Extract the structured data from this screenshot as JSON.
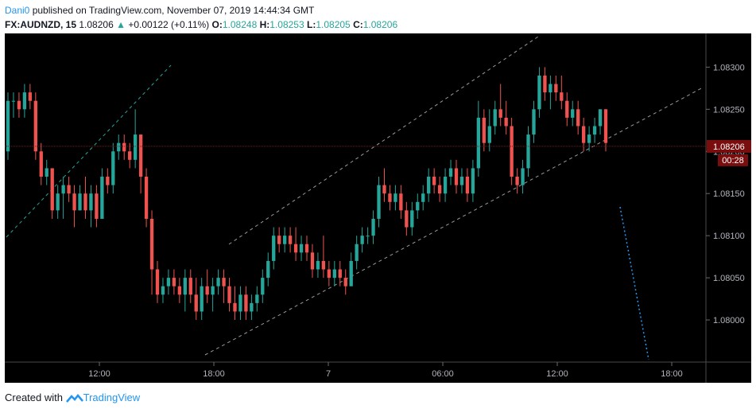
{
  "header": {
    "author": "Dani0",
    "published_text": " published on TradingView.com, November 07, 2019 14:44:34 GMT",
    "symbol": "FX:AUDNZD, 15",
    "last": "1.08206",
    "change": "+0.00122 (+0.11%)",
    "open_label": "O:",
    "open": "1.08248",
    "high_label": "H:",
    "high": "1.08253",
    "low_label": "L:",
    "low": "1.08205",
    "close_label": "C:",
    "close": "1.08206"
  },
  "footer": {
    "created_with": "Created with",
    "brand": "TradingView"
  },
  "colors": {
    "up": "#26a69a",
    "down": "#ef5350",
    "bg": "#000000",
    "axis_text": "#b2b5be",
    "price_tag": "#7a0e0e"
  },
  "chart_data": {
    "type": "candlestick",
    "timeframe": "15",
    "y_ticks": [
      "1.08300",
      "1.08250",
      "1.08200",
      "1.08150",
      "1.08100",
      "1.08050",
      "1.08000"
    ],
    "x_ticks": [
      "12:00",
      "18:00",
      "7",
      "06:00",
      "12:00",
      "18:00"
    ],
    "last_price_label": "1.08206",
    "countdown_label": "00:28",
    "ylim": [
      1.0795,
      1.0834
    ],
    "candles": [
      [
        1.082,
        1.0827,
        1.0819,
        1.0826
      ],
      [
        1.0826,
        1.0827,
        1.0824,
        1.0826
      ],
      [
        1.0826,
        1.0827,
        1.0824,
        1.0825
      ],
      [
        1.0825,
        1.0828,
        1.0824,
        1.0827
      ],
      [
        1.0827,
        1.0828,
        1.0825,
        1.0826
      ],
      [
        1.0826,
        1.0827,
        1.0819,
        1.082
      ],
      [
        1.082,
        1.0821,
        1.0816,
        1.0817
      ],
      [
        1.0817,
        1.0819,
        1.0816,
        1.0818
      ],
      [
        1.0818,
        1.0818,
        1.0812,
        1.0813
      ],
      [
        1.0813,
        1.0816,
        1.0812,
        1.0815
      ],
      [
        1.0815,
        1.0817,
        1.0812,
        1.0816
      ],
      [
        1.0816,
        1.0817,
        1.0814,
        1.0815
      ],
      [
        1.0815,
        1.0816,
        1.0811,
        1.0813
      ],
      [
        1.0813,
        1.0816,
        1.0813,
        1.0815
      ],
      [
        1.0815,
        1.0817,
        1.0812,
        1.0813
      ],
      [
        1.0813,
        1.0816,
        1.0811,
        1.0815
      ],
      [
        1.0815,
        1.0816,
        1.0811,
        1.0812
      ],
      [
        1.0812,
        1.0818,
        1.0812,
        1.0817
      ],
      [
        1.0817,
        1.0818,
        1.0815,
        1.0816
      ],
      [
        1.0816,
        1.0821,
        1.0815,
        1.082
      ],
      [
        1.082,
        1.0822,
        1.0819,
        1.0821
      ],
      [
        1.0821,
        1.0822,
        1.0819,
        1.082
      ],
      [
        1.082,
        1.0821,
        1.0818,
        1.0819
      ],
      [
        1.0819,
        1.0825,
        1.0818,
        1.0822
      ],
      [
        1.0822,
        1.0822,
        1.0815,
        1.0817
      ],
      [
        1.0817,
        1.0818,
        1.0811,
        1.0812
      ],
      [
        1.0812,
        1.0813,
        1.0803,
        1.0806
      ],
      [
        1.0806,
        1.0807,
        1.0802,
        1.0803
      ],
      [
        1.0803,
        1.0805,
        1.0802,
        1.0804
      ],
      [
        1.0804,
        1.0806,
        1.0803,
        1.0805
      ],
      [
        1.0805,
        1.0806,
        1.0803,
        1.0804
      ],
      [
        1.0804,
        1.0805,
        1.0802,
        1.0803
      ],
      [
        1.0803,
        1.0806,
        1.0801,
        1.0805
      ],
      [
        1.0805,
        1.0806,
        1.0802,
        1.0803
      ],
      [
        1.0803,
        1.0805,
        1.08,
        1.0801
      ],
      [
        1.0801,
        1.0805,
        1.08,
        1.0804
      ],
      [
        1.0804,
        1.0806,
        1.0802,
        1.0803
      ],
      [
        1.0803,
        1.0805,
        1.0801,
        1.0804
      ],
      [
        1.0804,
        1.0806,
        1.0803,
        1.0805
      ],
      [
        1.0805,
        1.0806,
        1.0802,
        1.0804
      ],
      [
        1.0804,
        1.0805,
        1.0801,
        1.0802
      ],
      [
        1.0802,
        1.0804,
        1.08,
        1.0801
      ],
      [
        1.0801,
        1.0804,
        1.08,
        1.0803
      ],
      [
        1.0803,
        1.0804,
        1.08,
        1.0801
      ],
      [
        1.0801,
        1.0803,
        1.08,
        1.0802
      ],
      [
        1.0802,
        1.0804,
        1.0801,
        1.0803
      ],
      [
        1.0803,
        1.0806,
        1.0802,
        1.0805
      ],
      [
        1.0805,
        1.0808,
        1.0804,
        1.0807
      ],
      [
        1.0807,
        1.0811,
        1.0806,
        1.081
      ],
      [
        1.081,
        1.0811,
        1.0808,
        1.0809
      ],
      [
        1.0809,
        1.0811,
        1.0808,
        1.081
      ],
      [
        1.081,
        1.0811,
        1.0808,
        1.0809
      ],
      [
        1.0809,
        1.0811,
        1.0807,
        1.0808
      ],
      [
        1.0808,
        1.081,
        1.0807,
        1.0809
      ],
      [
        1.0809,
        1.081,
        1.0807,
        1.0808
      ],
      [
        1.0808,
        1.0809,
        1.0805,
        1.0806
      ],
      [
        1.0806,
        1.0808,
        1.0805,
        1.0807
      ],
      [
        1.0807,
        1.081,
        1.0805,
        1.0806
      ],
      [
        1.0806,
        1.0807,
        1.0804,
        1.0805
      ],
      [
        1.0805,
        1.0807,
        1.0804,
        1.0806
      ],
      [
        1.0806,
        1.0807,
        1.0804,
        1.0805
      ],
      [
        1.0805,
        1.0806,
        1.0803,
        1.0804
      ],
      [
        1.0804,
        1.0808,
        1.0804,
        1.0807
      ],
      [
        1.0807,
        1.081,
        1.0806,
        1.0809
      ],
      [
        1.0809,
        1.0811,
        1.0808,
        1.081
      ],
      [
        1.081,
        1.0811,
        1.0809,
        1.081
      ],
      [
        1.081,
        1.0813,
        1.0809,
        1.0812
      ],
      [
        1.0812,
        1.0817,
        1.0811,
        1.0816
      ],
      [
        1.0816,
        1.0818,
        1.0814,
        1.0815
      ],
      [
        1.0815,
        1.0816,
        1.0813,
        1.0814
      ],
      [
        1.0814,
        1.0816,
        1.0813,
        1.0815
      ],
      [
        1.0815,
        1.0816,
        1.0812,
        1.0813
      ],
      [
        1.0813,
        1.0814,
        1.081,
        1.0811
      ],
      [
        1.0811,
        1.0814,
        1.081,
        1.0813
      ],
      [
        1.0813,
        1.0815,
        1.0812,
        1.0814
      ],
      [
        1.0814,
        1.0816,
        1.0813,
        1.0815
      ],
      [
        1.0815,
        1.0818,
        1.0814,
        1.0817
      ],
      [
        1.0817,
        1.0818,
        1.0815,
        1.0816
      ],
      [
        1.0816,
        1.0817,
        1.0814,
        1.0815
      ],
      [
        1.0815,
        1.0818,
        1.0814,
        1.0817
      ],
      [
        1.0817,
        1.0819,
        1.0816,
        1.0818
      ],
      [
        1.0818,
        1.0819,
        1.0815,
        1.0816
      ],
      [
        1.0816,
        1.0818,
        1.0815,
        1.0817
      ],
      [
        1.0817,
        1.0818,
        1.0814,
        1.0815
      ],
      [
        1.0815,
        1.0819,
        1.0814,
        1.0818
      ],
      [
        1.0818,
        1.0826,
        1.0817,
        1.0824
      ],
      [
        1.0824,
        1.0825,
        1.082,
        1.0821
      ],
      [
        1.0821,
        1.0825,
        1.082,
        1.0823
      ],
      [
        1.0823,
        1.0826,
        1.0822,
        1.0825
      ],
      [
        1.0825,
        1.0828,
        1.0823,
        1.0824
      ],
      [
        1.0824,
        1.0826,
        1.0822,
        1.0823
      ],
      [
        1.0823,
        1.0824,
        1.0816,
        1.0817
      ],
      [
        1.0817,
        1.0818,
        1.0815,
        1.0816
      ],
      [
        1.0816,
        1.0819,
        1.0815,
        1.0818
      ],
      [
        1.0818,
        1.0823,
        1.0817,
        1.0822
      ],
      [
        1.0822,
        1.0826,
        1.0821,
        1.0825
      ],
      [
        1.0825,
        1.083,
        1.0824,
        1.0829
      ],
      [
        1.0829,
        1.083,
        1.0826,
        1.0827
      ],
      [
        1.0827,
        1.0829,
        1.0825,
        1.0828
      ],
      [
        1.0828,
        1.0829,
        1.0826,
        1.0827
      ],
      [
        1.0827,
        1.0829,
        1.0825,
        1.0826
      ],
      [
        1.0826,
        1.0827,
        1.0823,
        1.0824
      ],
      [
        1.0824,
        1.0826,
        1.0823,
        1.0825
      ],
      [
        1.0825,
        1.0826,
        1.0822,
        1.0823
      ],
      [
        1.0823,
        1.0824,
        1.082,
        1.0821
      ],
      [
        1.0821,
        1.0823,
        1.082,
        1.0822
      ],
      [
        1.0822,
        1.0824,
        1.0821,
        1.0823
      ],
      [
        1.0823,
        1.0825,
        1.0822,
        1.0825
      ],
      [
        1.0825,
        1.0825,
        1.082,
        1.0821
      ]
    ]
  }
}
